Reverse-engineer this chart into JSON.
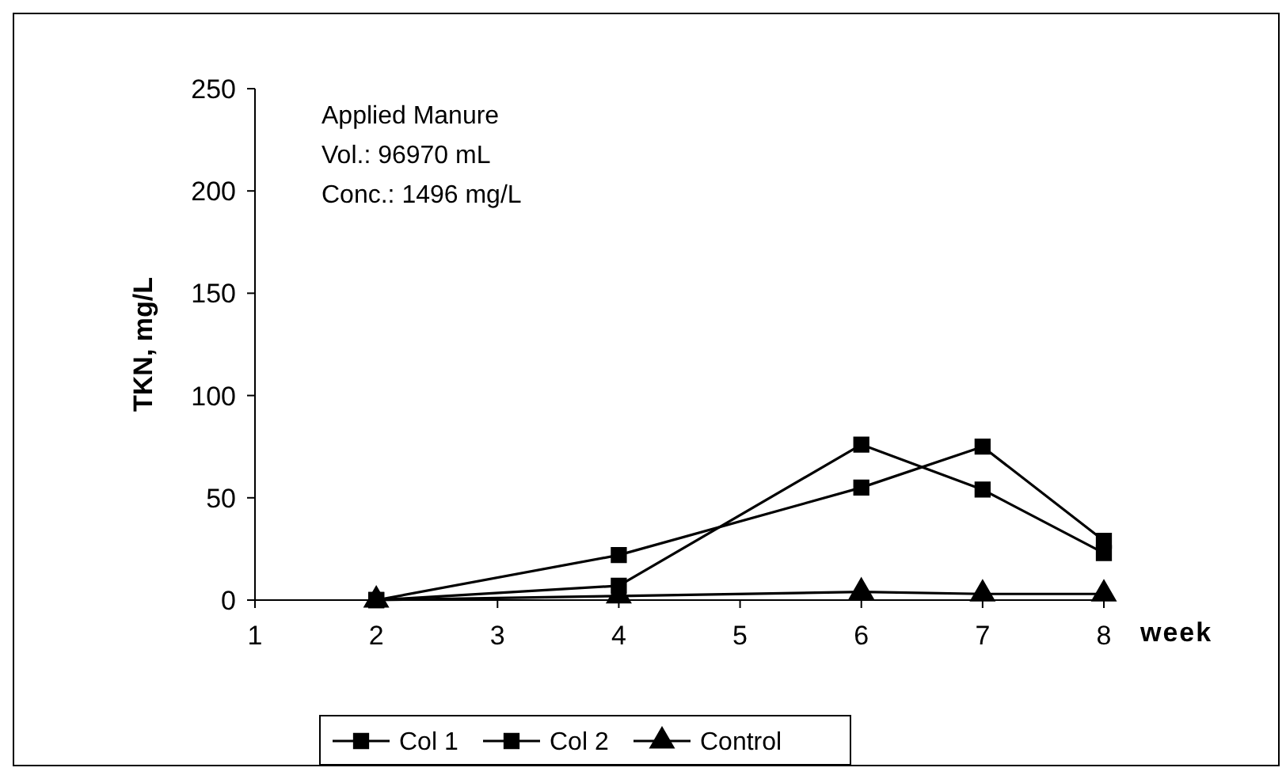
{
  "chart_data": {
    "type": "line",
    "ylabel": "TKN, mg/L",
    "xlabel": "week",
    "x": [
      2,
      4,
      6,
      7,
      8
    ],
    "xlim": [
      1,
      8
    ],
    "xticks": [
      1,
      2,
      3,
      4,
      5,
      6,
      7,
      8
    ],
    "ylim": [
      0,
      250
    ],
    "yticks": [
      0,
      50,
      100,
      150,
      200,
      250
    ],
    "grid": false,
    "legend": "bottom",
    "line_style": "solid",
    "annotations": [
      "Applied Manure",
      "Vol.: 96970 mL",
      "Conc.: 1496 mg/L"
    ],
    "series": [
      {
        "name": "Col 1",
        "color": "#000000",
        "marker": "square",
        "values": [
          0,
          7,
          76,
          54,
          23
        ]
      },
      {
        "name": "Col 2",
        "color": "#000000",
        "marker": "square",
        "values": [
          0,
          22,
          55,
          75,
          29
        ]
      },
      {
        "name": "Control",
        "color": "#000000",
        "marker": "triangle",
        "values": [
          0,
          2,
          4,
          3,
          3
        ]
      }
    ]
  }
}
